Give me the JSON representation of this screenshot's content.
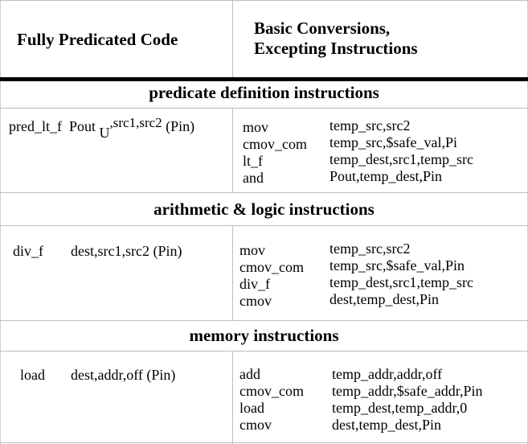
{
  "header": {
    "left": "Fully Predicated Code",
    "right_line1": "Basic Conversions,",
    "right_line2": "Excepting Instructions"
  },
  "sections": [
    {
      "title": "predicate definition instructions",
      "left_op": "pred_lt_f",
      "left_args_pre": "Pout",
      "left_args_sub": "U",
      "left_args_sup": ",src1,src2",
      "left_args_post": " (Pin)",
      "right_ops": [
        "mov",
        "cmov_com",
        "lt_f",
        "and"
      ],
      "right_args": [
        "temp_src,src2",
        "temp_src,$safe_val,Pi",
        "temp_dest,src1,temp_src",
        "Pout,temp_dest,Pin"
      ]
    },
    {
      "title": "arithmetic & logic instructions",
      "left_op": "div_f",
      "left_args": "dest,src1,src2 (Pin)",
      "right_ops": [
        "mov",
        "cmov_com",
        "div_f",
        "cmov"
      ],
      "right_args": [
        "temp_src,src2",
        "temp_src,$safe_val,Pin",
        "temp_dest,src1,temp_src",
        "dest,temp_dest,Pin"
      ]
    },
    {
      "title": "memory instructions",
      "left_op": "load",
      "left_args": "dest,addr,off (Pin)",
      "right_ops": [
        "add",
        "cmov_com",
        "load",
        "cmov"
      ],
      "right_args": [
        "temp_addr,addr,off",
        "temp_addr,$safe_addr,Pin",
        "temp_dest,temp_addr,0",
        "dest,temp_dest,Pin"
      ]
    }
  ]
}
